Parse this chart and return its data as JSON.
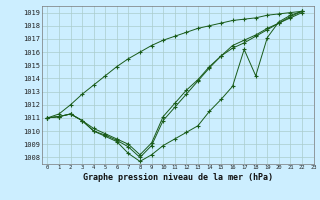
{
  "title": "Graphe pression niveau de la mer (hPa)",
  "background_color": "#cceeff",
  "grid_color": "#aacccc",
  "line_color": "#1a5c1a",
  "ylim": [
    1007.5,
    1019.5
  ],
  "xlim": [
    -0.5,
    23
  ],
  "yticks": [
    1008,
    1009,
    1010,
    1011,
    1012,
    1013,
    1014,
    1015,
    1016,
    1017,
    1018,
    1019
  ],
  "xticks": [
    0,
    1,
    2,
    3,
    4,
    5,
    6,
    7,
    8,
    9,
    10,
    11,
    12,
    13,
    14,
    15,
    16,
    17,
    18,
    19,
    20,
    21,
    22,
    23
  ],
  "lines": [
    {
      "x": [
        0,
        1,
        2,
        3,
        4,
        5,
        6,
        7,
        8,
        9,
        10,
        11,
        12,
        13,
        14,
        15,
        16,
        17,
        18,
        19,
        20,
        21,
        22
      ],
      "y": [
        1011.0,
        1011.1,
        1011.3,
        1010.8,
        1010.0,
        1009.6,
        1009.2,
        1008.3,
        1007.7,
        1008.2,
        1008.9,
        1009.4,
        1009.9,
        1010.4,
        1011.5,
        1012.4,
        1013.4,
        1016.2,
        1014.2,
        1017.1,
        1018.3,
        1018.8,
        1019.1
      ]
    },
    {
      "x": [
        0,
        1,
        2,
        3,
        4,
        5,
        6,
        7,
        8,
        9,
        10,
        11,
        12,
        13,
        14,
        15,
        16,
        17,
        18,
        19,
        20,
        21,
        22
      ],
      "y": [
        1011.0,
        1011.1,
        1011.3,
        1010.8,
        1010.0,
        1009.7,
        1009.3,
        1008.8,
        1008.0,
        1008.9,
        1010.8,
        1011.8,
        1012.8,
        1013.8,
        1014.8,
        1015.7,
        1016.3,
        1016.7,
        1017.2,
        1017.7,
        1018.2,
        1018.7,
        1019.1
      ]
    },
    {
      "x": [
        0,
        1,
        2,
        3,
        4,
        5,
        6,
        7,
        8,
        9,
        10,
        11,
        12,
        13,
        14,
        15,
        16,
        17,
        18,
        19,
        20,
        21,
        22
      ],
      "y": [
        1011.0,
        1011.1,
        1011.3,
        1010.8,
        1010.2,
        1009.8,
        1009.4,
        1009.0,
        1008.2,
        1009.1,
        1011.1,
        1012.1,
        1013.1,
        1013.9,
        1014.9,
        1015.7,
        1016.5,
        1016.9,
        1017.3,
        1017.8,
        1018.2,
        1018.6,
        1019.0
      ]
    },
    {
      "x": [
        0,
        1,
        2,
        3,
        4,
        5,
        6,
        7,
        8,
        9,
        10,
        11,
        12,
        13,
        14,
        15,
        16,
        17,
        18,
        19,
        20,
        21,
        22
      ],
      "y": [
        1011.0,
        1011.3,
        1012.0,
        1012.8,
        1013.5,
        1014.2,
        1014.9,
        1015.5,
        1016.0,
        1016.5,
        1016.9,
        1017.2,
        1017.5,
        1017.8,
        1018.0,
        1018.2,
        1018.4,
        1018.5,
        1018.6,
        1018.8,
        1018.9,
        1019.0,
        1019.1
      ]
    }
  ]
}
